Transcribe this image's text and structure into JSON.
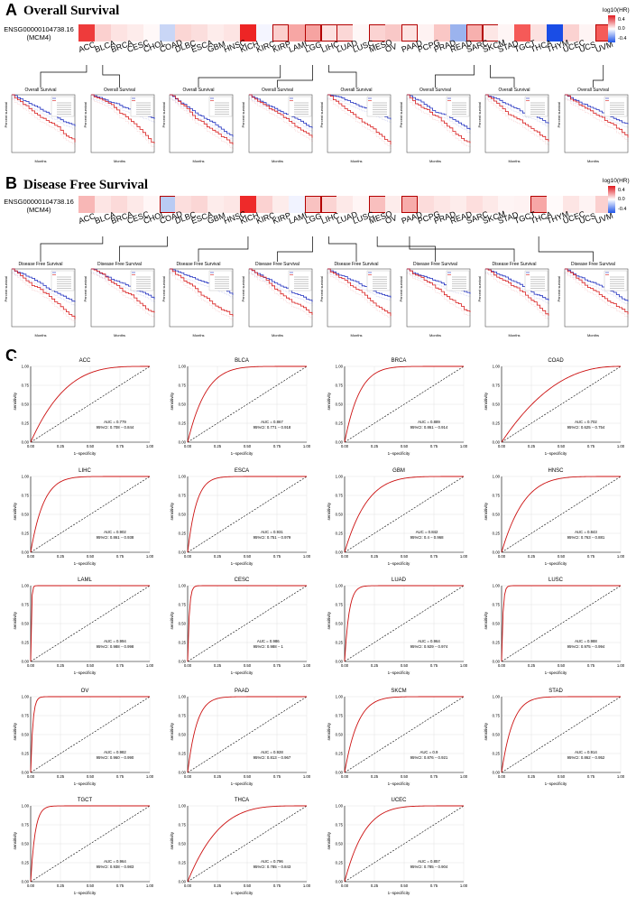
{
  "panels": {
    "a": "A",
    "b": "B",
    "c": "C"
  },
  "os_title": "Overall Survival",
  "dfs_title": "Disease Free Survival",
  "gene": {
    "line1": "ENSG00000104738.16",
    "line2": "(MCM4)"
  },
  "legend": {
    "title": "log10(HR)",
    "ticks": [
      "0.4",
      "0.0",
      "-0.4"
    ],
    "ticks_b": [
      "0.4",
      "0.0",
      "-0.4"
    ]
  },
  "cancers": [
    "ACC",
    "BLCA",
    "BRCA",
    "CESC",
    "CHOL",
    "COAD",
    "DLBC",
    "ESCA",
    "GBM",
    "HNSC",
    "KICH",
    "KIRC",
    "KIRP",
    "LAML",
    "LGG",
    "LIHC",
    "LUAD",
    "LUSC",
    "MESO",
    "OV",
    "PAAD",
    "PCPG",
    "PRAD",
    "READ",
    "SARC",
    "SKCM",
    "STAD",
    "TGCT",
    "THCA",
    "THYM",
    "UCEC",
    "UCS",
    "UVM"
  ],
  "heatmap_os": {
    "colors": [
      "#ee3b3b",
      "#fbd0cf",
      "#fde3e2",
      "#fdeceb",
      "#fff8f8",
      "#c9d6f6",
      "#fbd6d4",
      "#fbdedd",
      "#fdeceb",
      "#fde4e3",
      "#ed2525",
      "#f4f5ff",
      "#fbcfcd",
      "#f7a6a4",
      "#f6a3a1",
      "#fde1e0",
      "#fbd7d6",
      "#fef7f7",
      "#fbd3d2",
      "#f9c8c7",
      "#fde3e2",
      "#fef2f2",
      "#fac7c5",
      "#9bb3ee",
      "#f7b0ae",
      "#fde6e5",
      "#fef5f5",
      "#f55a58",
      "#fce1e0",
      "#1a4de6",
      "#fbd2d1",
      "#fef4f4",
      "#f55b59"
    ],
    "sig": [
      false,
      false,
      false,
      false,
      false,
      false,
      false,
      false,
      false,
      false,
      false,
      false,
      true,
      false,
      true,
      true,
      true,
      false,
      true,
      false,
      true,
      false,
      false,
      false,
      true,
      true,
      false,
      false,
      false,
      false,
      false,
      false,
      true
    ]
  },
  "heatmap_dfs": {
    "colors": [
      "#f8b7b6",
      "#fde5e4",
      "#fcdad9",
      "#fde9e8",
      "#fff6f6",
      "#b9cbf3",
      "#fcdedd",
      "#fbd6d5",
      "#fdeceb",
      "#fde6e5",
      "#ee2a2a",
      "#fbd2d1",
      "#fdeceb",
      "#f1f3ff",
      "#f9c2c1",
      "#fbd4d3",
      "#fde9e8",
      "#fff5f5",
      "#f9bfbe",
      "#fdeceb",
      "#f7acab",
      "#fcdcdb",
      "#fde6e5",
      "#fdeceb",
      "#fddedd",
      "#fde9e8",
      "#fef4f4",
      "#fef2f2",
      "#f7a7a6",
      "#fffafa",
      "#fde5e4",
      "#fef3f3",
      "#fbd0cf"
    ],
    "sig": [
      false,
      false,
      false,
      false,
      false,
      true,
      false,
      false,
      false,
      false,
      false,
      false,
      false,
      false,
      true,
      true,
      false,
      false,
      true,
      false,
      true,
      false,
      false,
      false,
      false,
      false,
      false,
      false,
      true,
      false,
      false,
      false,
      false
    ]
  },
  "km_common": {
    "title_os": "Overall Survival",
    "title_dfs": "Disease Free Survival",
    "ylabel": "Percent survival",
    "xlabel": "Months",
    "legend_low": "Low MCM4 Group",
    "legend_high": "High MCM4 Group"
  },
  "chart_data": [
    {
      "type": "heatmap",
      "title": "Overall Survival",
      "rows": [
        "ENSG00000104738.16 (MCM4)"
      ],
      "columns": [
        "ACC",
        "BLCA",
        "BRCA",
        "CESC",
        "CHOL",
        "COAD",
        "DLBC",
        "ESCA",
        "GBM",
        "HNSC",
        "KICH",
        "KIRC",
        "KIRP",
        "LAML",
        "LGG",
        "LIHC",
        "LUAD",
        "LUSC",
        "MESO",
        "OV",
        "PAAD",
        "PCPG",
        "PRAD",
        "READ",
        "SARC",
        "SKCM",
        "STAD",
        "TGCT",
        "THCA",
        "THYM",
        "UCEC",
        "UCS",
        "UVM"
      ],
      "values": [
        [
          0.45,
          0.1,
          0.06,
          0.04,
          0.01,
          -0.12,
          0.09,
          0.07,
          0.04,
          0.06,
          0.5,
          -0.02,
          0.1,
          0.2,
          0.21,
          0.07,
          0.09,
          0.01,
          0.1,
          0.12,
          0.06,
          0.02,
          0.12,
          -0.23,
          0.17,
          0.05,
          0.02,
          0.36,
          0.06,
          -0.5,
          0.1,
          0.02,
          0.36
        ]
      ],
      "legend_title": "log10(HR)",
      "color_range": [
        -0.5,
        0.5
      ],
      "legend_ticks": [
        0.4,
        0.0,
        -0.4
      ]
    },
    {
      "type": "heatmap",
      "title": "Disease Free Survival",
      "rows": [
        "ENSG00000104738.16 (MCM4)"
      ],
      "columns": [
        "ACC",
        "BLCA",
        "BRCA",
        "CESC",
        "CHOL",
        "COAD",
        "DLBC",
        "ESCA",
        "GBM",
        "HNSC",
        "KICH",
        "KIRC",
        "KIRP",
        "LAML",
        "LGG",
        "LIHC",
        "LUAD",
        "LUSC",
        "MESO",
        "OV",
        "PAAD",
        "PCPG",
        "PRAD",
        "READ",
        "SARC",
        "SKCM",
        "STAD",
        "TGCT",
        "THCA",
        "THYM",
        "UCEC",
        "UCS",
        "UVM"
      ],
      "values": [
        [
          0.18,
          0.06,
          0.08,
          0.05,
          0.02,
          -0.16,
          0.07,
          0.09,
          0.04,
          0.06,
          0.48,
          0.1,
          0.04,
          -0.03,
          0.14,
          0.1,
          0.05,
          0.02,
          0.15,
          0.04,
          0.19,
          0.08,
          0.06,
          0.04,
          0.07,
          0.05,
          0.02,
          0.03,
          0.2,
          0.01,
          0.06,
          0.02,
          0.1
        ]
      ],
      "legend_title": "log10(HR)",
      "color_range": [
        -0.5,
        0.5
      ],
      "legend_ticks": [
        0.4,
        0.0,
        -0.4
      ]
    },
    {
      "type": "line",
      "subtype": "roc",
      "xlabel": "1−specificity",
      "ylabel": "sensitivity",
      "xlim": [
        0,
        1
      ],
      "ylim": [
        0,
        1
      ],
      "ticks": [
        "0.00",
        "0.25",
        "0.50",
        "0.75",
        "1.00"
      ],
      "plots": [
        {
          "title": "ACC",
          "auc": "AUC = 0.779",
          "ci": "95%CI: 0.708 − 0.844",
          "auc_value": 0.779
        },
        {
          "title": "BLCA",
          "auc": "AUC = 0.867",
          "ci": "95%CI: 0.771 − 0.918",
          "auc_value": 0.867
        },
        {
          "title": "BRCA",
          "auc": "AUC = 0.889",
          "ci": "95%CI: 0.861 − 0.914",
          "auc_value": 0.889
        },
        {
          "title": "COAD",
          "auc": "AUC = 0.702",
          "ci": "95%CI: 0.625 − 0.754",
          "auc_value": 0.702
        },
        {
          "title": "LIHC",
          "auc": "AUC = 0.902",
          "ci": "95%CI: 0.861 − 0.938",
          "auc_value": 0.902
        },
        {
          "title": "ESCA",
          "auc": "AUC = 0.931",
          "ci": "95%CI: 0.751 − 0.979",
          "auc_value": 0.931
        },
        {
          "title": "GBM",
          "auc": "AUC = 0.842",
          "ci": "95%CI: 0.4 − 0.968",
          "auc_value": 0.842
        },
        {
          "title": "HNSC",
          "auc": "AUC = 0.843",
          "ci": "95%CI: 0.763 − 0.881",
          "auc_value": 0.843
        },
        {
          "title": "LAML",
          "auc": "AUC = 0.994",
          "ci": "95%CI: 0.988 − 0.998",
          "auc_value": 0.994
        },
        {
          "title": "CESC",
          "auc": "AUC = 0.986",
          "ci": "95%CI: 0.988 − 1",
          "auc_value": 0.986
        },
        {
          "title": "LUAD",
          "auc": "AUC = 0.964",
          "ci": "95%CI: 0.929 − 0.974",
          "auc_value": 0.964
        },
        {
          "title": "LUSC",
          "auc": "AUC = 0.988",
          "ci": "95%CI: 0.975 − 0.994",
          "auc_value": 0.988
        },
        {
          "title": "OV",
          "auc": "AUC = 0.982",
          "ci": "95%CI: 0.960 − 0.990",
          "auc_value": 0.982
        },
        {
          "title": "PAAD",
          "auc": "AUC = 0.928",
          "ci": "95%CI: 0.813 − 0.967",
          "auc_value": 0.928
        },
        {
          "title": "SKCM",
          "auc": "AUC = 0.9",
          "ci": "95%CI: 0.876 − 0.921",
          "auc_value": 0.9
        },
        {
          "title": "STAD",
          "auc": "AUC = 0.914",
          "ci": "95%CI: 0.862 − 0.952",
          "auc_value": 0.914
        },
        {
          "title": "TGCT",
          "auc": "AUC = 0.964",
          "ci": "95%CI: 0.938 − 0.983",
          "auc_value": 0.964
        },
        {
          "title": "THCA",
          "auc": "AUC = 0.796",
          "ci": "95%CI: 0.785 − 0.843",
          "auc_value": 0.796
        },
        {
          "title": "UCEC",
          "auc": "AUC = 0.857",
          "ci": "95%CI: 0.785 − 0.904",
          "auc_value": 0.857
        }
      ]
    }
  ],
  "colors": {
    "roc_curve": "#cc1111",
    "km_low": "#1f2fbf",
    "km_high": "#d81b1b",
    "sig_border": "#b30000"
  }
}
